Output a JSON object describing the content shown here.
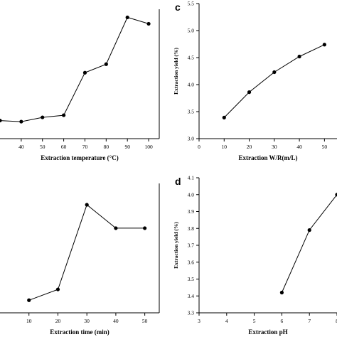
{
  "chart_data": [
    {
      "type": "line",
      "panel": "",
      "xlabel": "Extraction temperature (°C)",
      "ylabel": "",
      "xlim": [
        30,
        105
      ],
      "ylim": [
        3.33,
        4.6
      ],
      "xticks": [
        "40",
        "50",
        "60",
        "70",
        "80",
        "90",
        "100"
      ],
      "yticks": [],
      "x": [
        30,
        40,
        50,
        60,
        70,
        80,
        90,
        100
      ],
      "values": [
        3.5,
        3.49,
        3.53,
        3.55,
        3.95,
        4.03,
        4.47,
        4.41
      ]
    },
    {
      "type": "line",
      "panel": "c",
      "xlabel": "Extraction W/R(m/L)",
      "ylabel": "Extraction yield (%)",
      "xlim": [
        0,
        55
      ],
      "ylim": [
        3.0,
        5.5
      ],
      "xticks": [
        "0",
        "10",
        "20",
        "30",
        "40",
        "50"
      ],
      "yticks": [
        "3.0",
        "3.5",
        "4.0",
        "4.5",
        "5.0",
        "5.5"
      ],
      "x": [
        10,
        20,
        30,
        40,
        50
      ],
      "values": [
        3.39,
        3.86,
        4.23,
        4.52,
        4.74
      ]
    },
    {
      "type": "line",
      "panel": "",
      "xlabel": "Extraction time (min)",
      "ylabel": "",
      "xlim": [
        0,
        55
      ],
      "ylim": [
        3.8,
        4.55
      ],
      "xticks": [
        "10",
        "20",
        "30",
        "40",
        "50"
      ],
      "yticks": [],
      "x": [
        10,
        20,
        30,
        40,
        50
      ],
      "values": [
        3.87,
        3.93,
        4.4,
        4.27,
        4.27
      ]
    },
    {
      "type": "line",
      "panel": "d",
      "xlabel": "Extraction pH",
      "ylabel": "Extraction yield (%)",
      "xlim": [
        3,
        8
      ],
      "ylim": [
        3.3,
        4.1
      ],
      "xticks": [
        "3",
        "4",
        "5",
        "6",
        "7",
        "8"
      ],
      "yticks": [
        "3.3",
        "3.4",
        "3.5",
        "3.6",
        "3.7",
        "3.8",
        "3.9",
        "4.0",
        "4.1"
      ],
      "x": [
        6,
        7,
        8
      ],
      "values": [
        3.42,
        3.79,
        4.0
      ]
    }
  ]
}
